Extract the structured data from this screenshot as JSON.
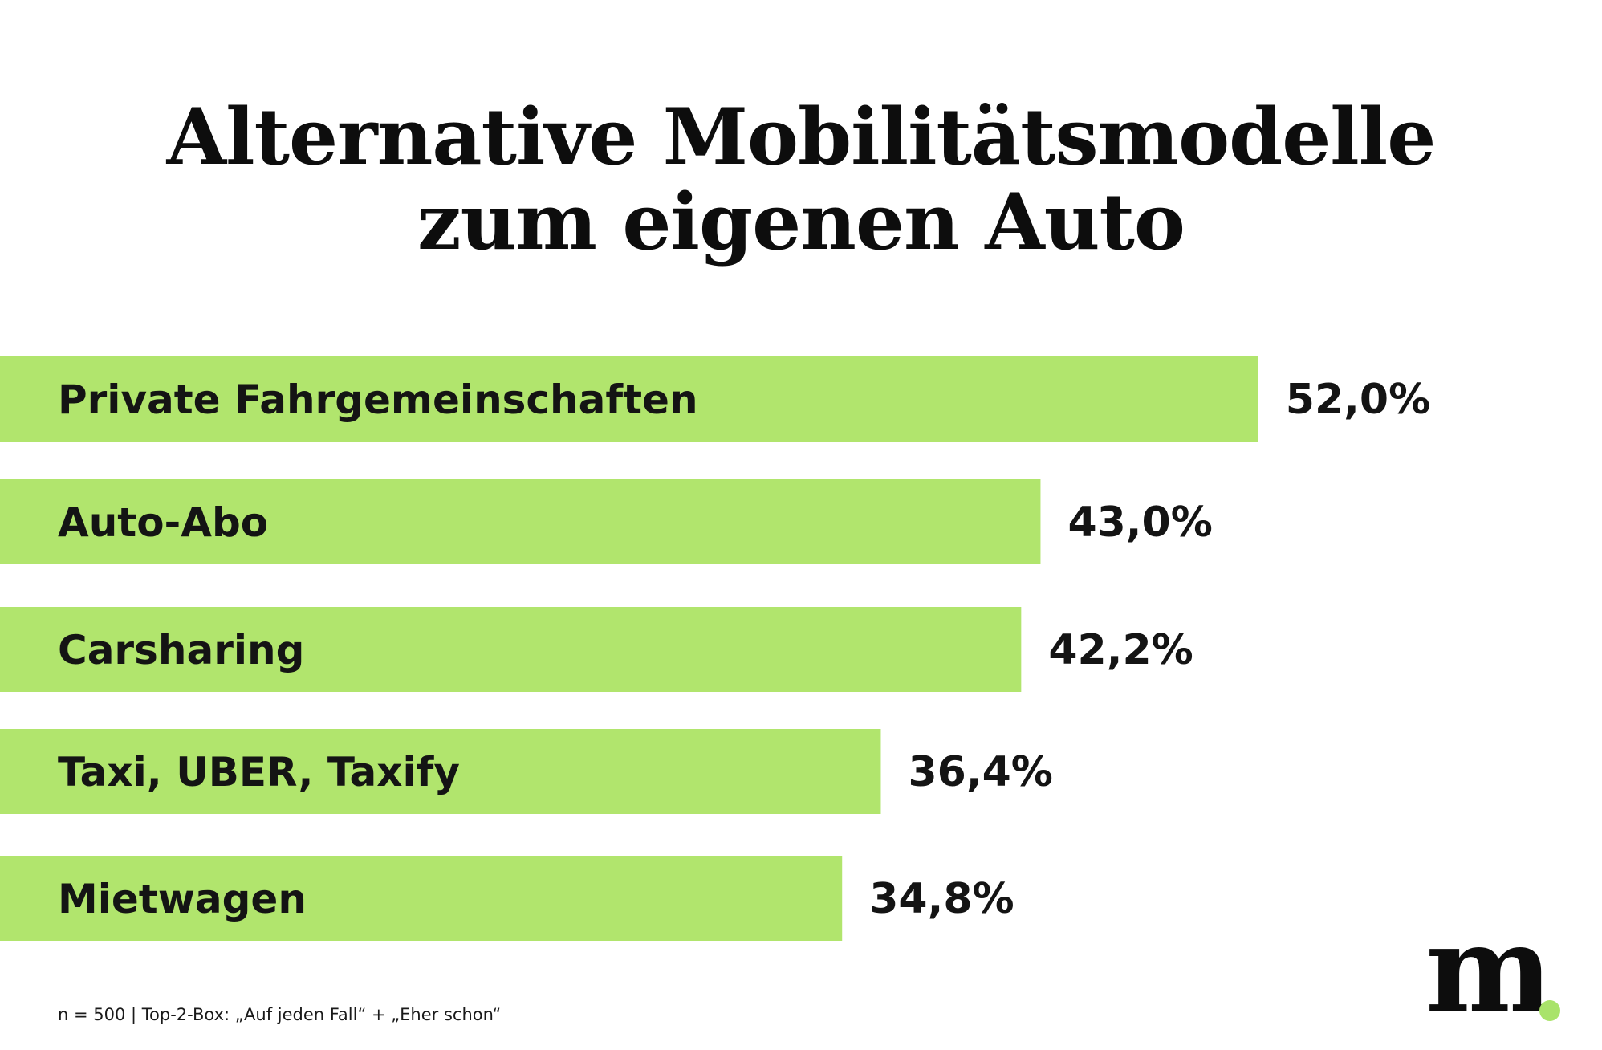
{
  "title": {
    "line1": "Alternative Mobilitätsmodelle",
    "line2": "zum eigenen Auto"
  },
  "colors": {
    "bar": "#b1e56d",
    "text": "#141414",
    "accent_dot": "#a9e36a"
  },
  "chart_data": {
    "type": "bar",
    "orientation": "horizontal",
    "categories": [
      "Private Fahrgemeinschaften",
      "Auto-Abo",
      "Carsharing",
      "Taxi, UBER, Taxify",
      "Mietwagen"
    ],
    "values": [
      52.0,
      43.0,
      42.2,
      36.4,
      34.8
    ],
    "value_labels": [
      "52,0%",
      "43,0%",
      "42,2%",
      "36,4%",
      "34,8%"
    ],
    "unit": "%",
    "title": "Alternative Mobilitätsmodelle zum eigenen Auto",
    "xlabel": "",
    "ylabel": "",
    "grid": false,
    "legend": "none"
  },
  "footnote": "n = 500 | Top-2-Box: „Auf jeden Fall“ + „Eher schon“",
  "logo": {
    "letter": "m",
    "icon": "brand-m-logo-icon"
  }
}
